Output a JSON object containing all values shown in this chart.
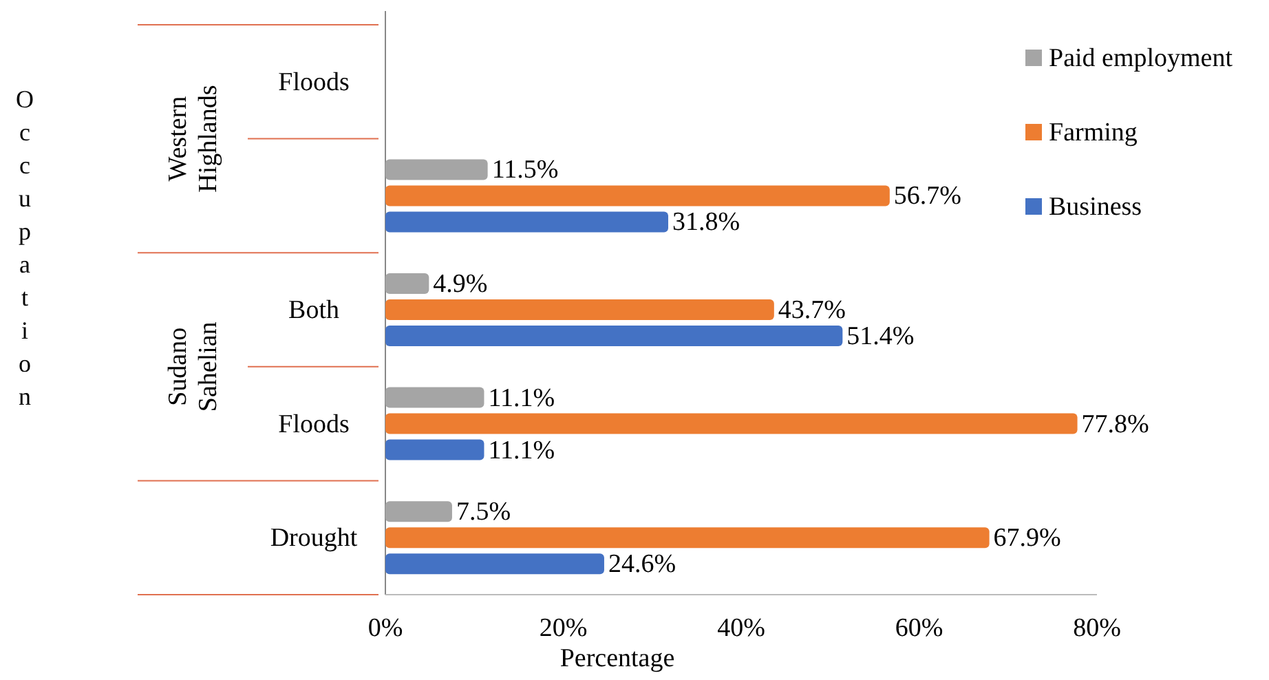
{
  "chart_data": {
    "type": "bar",
    "orientation": "horizontal",
    "ylabel": "Occupation",
    "xlabel": "Percentage",
    "categories": [
      "Floods",
      null,
      "Both",
      "Floods",
      "Drought"
    ],
    "series": [
      {
        "name": "Paid employment",
        "color": "#a5a5a5",
        "values": [
          null,
          11.5,
          4.9,
          11.1,
          7.5
        ],
        "value_labels": [
          null,
          "11.5%",
          "4.9%",
          "11.1%",
          "7.5%"
        ]
      },
      {
        "name": "Farming",
        "color": "#ed7d31",
        "values": [
          null,
          56.7,
          43.7,
          77.8,
          67.9
        ],
        "value_labels": [
          null,
          "56.7%",
          "43.7%",
          "77.8%",
          "67.9%"
        ]
      },
      {
        "name": "Business",
        "color": "#4472c4",
        "values": [
          null,
          31.8,
          51.4,
          11.1,
          24.6
        ],
        "value_labels": [
          null,
          "31.8%",
          "51.4%",
          "11.1%",
          "24.6%"
        ]
      }
    ],
    "xlim": [
      0,
      80
    ],
    "xticks": [
      {
        "value": 0,
        "label": "0%"
      },
      {
        "value": 20,
        "label": "20%"
      },
      {
        "value": 40,
        "label": "40%"
      },
      {
        "value": 60,
        "label": "60%"
      },
      {
        "value": 80,
        "label": "80%"
      }
    ],
    "annotations": [
      "Western Highlands",
      "Sudano Sahelian"
    ],
    "legend": "top right",
    "grid": false
  }
}
